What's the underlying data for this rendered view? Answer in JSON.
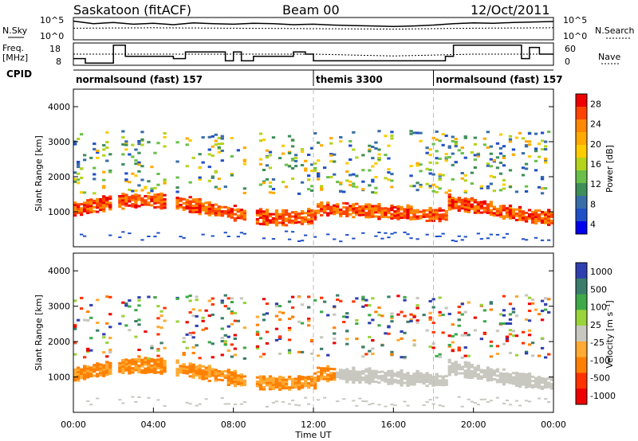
{
  "header": {
    "station": "Saskatoon (fitACF)",
    "beam": "Beam 00",
    "date": "12/Oct/2011"
  },
  "summary_panel": {
    "left_labels": {
      "nsky": "N.Sky",
      "freq_line1": "Freq.",
      "freq_line2": "[MHz]",
      "cpid": "CPID"
    },
    "right_labels": {
      "nsearch": "N.Search",
      "nave": "Nave"
    },
    "noise_ticks_left": [
      "10^5",
      "10^0"
    ],
    "noise_ticks_right": [
      "10^5",
      "10^0"
    ],
    "freq_ticks": [
      "18",
      "8"
    ],
    "nave_ticks": [
      "60",
      "0"
    ]
  },
  "cpid_segments": [
    {
      "label": "normalsound (fast) 157",
      "start_hour": 0.0
    },
    {
      "label": "themis 3300",
      "start_hour": 12.0
    },
    {
      "label": "normalsound (fast) 157",
      "start_hour": 18.0
    }
  ],
  "colorbars": {
    "power": {
      "label": "Power [dB]",
      "ticks": [
        "28",
        "24",
        "20",
        "16",
        "12",
        "8",
        "4"
      ],
      "colors": [
        "#ee0000",
        "#ff4400",
        "#ff8800",
        "#ffaa00",
        "#ffcc00",
        "#b4d41c",
        "#6abf4a",
        "#3f8f5a",
        "#3a6ea8",
        "#2050c8",
        "#0000ee"
      ]
    },
    "velocity": {
      "label": "Velocity [m s⁻¹]",
      "ticks": [
        "1000",
        "500",
        "100",
        "25",
        "-25",
        "-100",
        "-500",
        "-1000"
      ],
      "colors": [
        "#2f3fb0",
        "#3a7d6a",
        "#3faa4a",
        "#9ad33a",
        "#c8c8c0",
        "#ffaa33",
        "#ff8000",
        "#ff3300",
        "#ee0000"
      ]
    }
  },
  "chart_data": [
    {
      "type": "line",
      "panel": "noise",
      "series": [
        {
          "name": "N.Sky",
          "x": [
            0,
            1,
            2,
            3,
            4,
            5,
            6,
            7,
            8,
            9,
            10,
            11,
            12,
            13,
            14,
            15,
            16,
            17,
            18,
            19,
            20,
            21,
            22,
            23,
            24
          ],
          "values": [
            4.2,
            3.6,
            3.9,
            3.5,
            3.7,
            3.4,
            3.8,
            3.6,
            3.5,
            3.7,
            3.6,
            3.4,
            3.5,
            3.3,
            3.2,
            3.1,
            3.0,
            3.1,
            3.3,
            3.6,
            3.8,
            3.7,
            3.9,
            4.0,
            4.1
          ]
        },
        {
          "name": "N.Search",
          "x": [
            0,
            4,
            8,
            12,
            16,
            20,
            24
          ],
          "values": [
            2.6,
            2.7,
            2.6,
            2.5,
            2.4,
            2.6,
            2.7
          ]
        }
      ],
      "ylim": [
        0,
        5
      ],
      "yscale": "log"
    },
    {
      "type": "line",
      "panel": "frequency",
      "series": [
        {
          "name": "Freq.",
          "x": [
            0,
            0.6,
            0.6,
            2.0,
            2.0,
            2.6,
            2.6,
            5.0,
            5.0,
            5.6,
            5.6,
            7.6,
            7.6,
            8.0,
            8.0,
            8.4,
            8.4,
            9.0,
            9.0,
            11.0,
            11.0,
            11.6,
            11.6,
            12.0,
            12.0,
            18.6,
            18.6,
            19.0,
            19.0,
            22.4,
            22.4,
            22.8,
            22.8,
            23.3,
            23.3,
            24.0
          ],
          "values": [
            11,
            11,
            9,
            9,
            17,
            17,
            12,
            12,
            11,
            11,
            14,
            14,
            10,
            10,
            14,
            14,
            10,
            10,
            12,
            12,
            14,
            14,
            13,
            13,
            10,
            10,
            12,
            12,
            17,
            17,
            11,
            11,
            16,
            16,
            13,
            13
          ]
        },
        {
          "name": "Nave",
          "x": [
            0,
            4,
            8,
            12,
            16,
            20,
            24
          ],
          "values": [
            30,
            30,
            30,
            30,
            25,
            30,
            30
          ]
        }
      ],
      "ylim": [
        8,
        18
      ]
    },
    {
      "type": "heatmap",
      "panel": "power",
      "xlabel": "",
      "ylabel": "Slant Range [km]",
      "xlim": [
        0,
        24
      ],
      "ylim": [
        0,
        4500
      ],
      "yticks": [
        "1000",
        "2000",
        "3000",
        "4000"
      ]
    },
    {
      "type": "heatmap",
      "panel": "velocity",
      "xlabel": "Time UT",
      "ylabel": "Slant Range [km]",
      "xlim": [
        0,
        24
      ],
      "ylim": [
        0,
        4500
      ],
      "xticks": [
        "00:00",
        "04:00",
        "08:00",
        "12:00",
        "16:00",
        "20:00",
        "00:00"
      ],
      "yticks": [
        "1000",
        "2000",
        "3000",
        "4000"
      ]
    }
  ]
}
